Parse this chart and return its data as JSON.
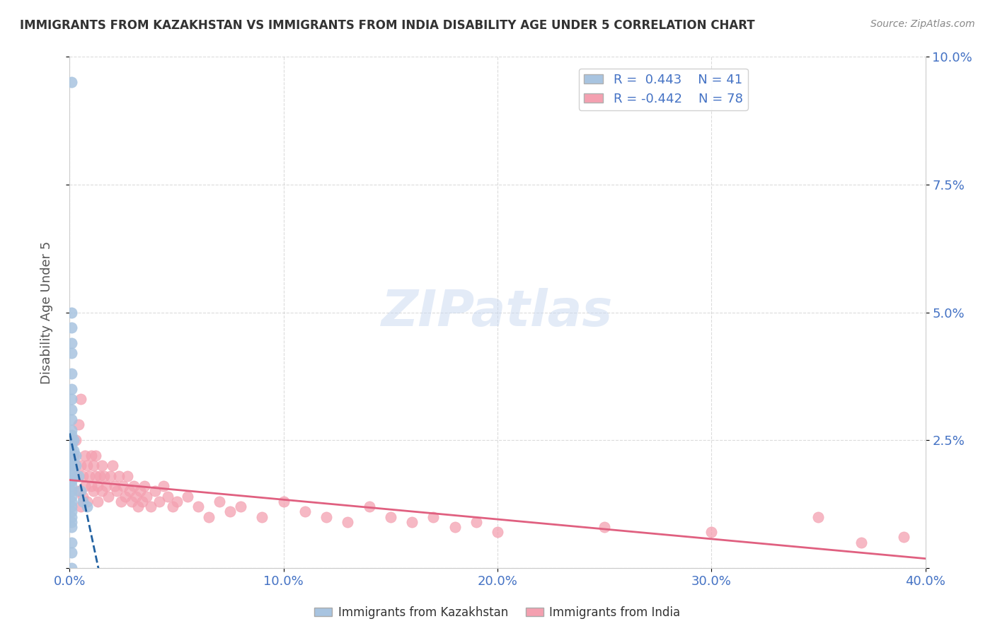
{
  "title": "IMMIGRANTS FROM KAZAKHSTAN VS IMMIGRANTS FROM INDIA DISABILITY AGE UNDER 5 CORRELATION CHART",
  "source": "Source: ZipAtlas.com",
  "ylabel": "Disability Age Under 5",
  "xlabel_bottom_left": "0.0%",
  "xlabel_bottom_right": "40.0%",
  "watermark": "ZIPatlas",
  "xlim": [
    0.0,
    0.4
  ],
  "ylim": [
    0.0,
    0.1
  ],
  "yticks": [
    0.0,
    0.025,
    0.05,
    0.075,
    0.1
  ],
  "ytick_labels": [
    "",
    "2.5%",
    "5.0%",
    "7.5%",
    "10.0%"
  ],
  "xticks": [
    0.0,
    0.1,
    0.2,
    0.3,
    0.4
  ],
  "xtick_labels": [
    "0.0%",
    "10.0%",
    "20.0%",
    "30.0%",
    "40.0%"
  ],
  "legend_r_kaz": "R =  0.443",
  "legend_n_kaz": "N = 41",
  "legend_r_ind": "R = -0.442",
  "legend_n_ind": "N = 78",
  "kaz_color": "#a8c4e0",
  "kaz_line_color": "#2060a0",
  "ind_color": "#f4a0b0",
  "ind_line_color": "#e06080",
  "title_color": "#333333",
  "axis_color": "#4472c4",
  "grid_color": "#cccccc",
  "background_color": "#ffffff",
  "kaz_x": [
    0.001,
    0.001,
    0.001,
    0.001,
    0.001,
    0.001,
    0.001,
    0.001,
    0.001,
    0.001,
    0.001,
    0.001,
    0.001,
    0.001,
    0.001,
    0.001,
    0.001,
    0.001,
    0.001,
    0.001,
    0.001,
    0.001,
    0.001,
    0.001,
    0.001,
    0.001,
    0.001,
    0.001,
    0.002,
    0.002,
    0.003,
    0.003,
    0.004,
    0.005,
    0.006,
    0.008,
    0.001,
    0.001,
    0.001,
    0.001,
    0.001
  ],
  "kaz_y": [
    0.095,
    0.05,
    0.047,
    0.044,
    0.042,
    0.038,
    0.035,
    0.033,
    0.031,
    0.029,
    0.027,
    0.026,
    0.025,
    0.024,
    0.023,
    0.022,
    0.021,
    0.02,
    0.019,
    0.018,
    0.017,
    0.016,
    0.015,
    0.014,
    0.013,
    0.012,
    0.011,
    0.01,
    0.025,
    0.023,
    0.022,
    0.02,
    0.018,
    0.015,
    0.013,
    0.012,
    0.009,
    0.008,
    0.005,
    0.003,
    0.0
  ],
  "ind_x": [
    0.001,
    0.002,
    0.003,
    0.003,
    0.004,
    0.004,
    0.005,
    0.005,
    0.006,
    0.006,
    0.007,
    0.007,
    0.008,
    0.008,
    0.009,
    0.01,
    0.01,
    0.011,
    0.011,
    0.012,
    0.012,
    0.013,
    0.013,
    0.014,
    0.015,
    0.015,
    0.016,
    0.017,
    0.018,
    0.019,
    0.02,
    0.021,
    0.022,
    0.023,
    0.024,
    0.025,
    0.026,
    0.027,
    0.028,
    0.029,
    0.03,
    0.031,
    0.032,
    0.033,
    0.034,
    0.035,
    0.036,
    0.038,
    0.04,
    0.042,
    0.044,
    0.046,
    0.048,
    0.05,
    0.055,
    0.06,
    0.065,
    0.07,
    0.075,
    0.08,
    0.09,
    0.1,
    0.11,
    0.12,
    0.13,
    0.14,
    0.15,
    0.16,
    0.17,
    0.18,
    0.19,
    0.2,
    0.25,
    0.3,
    0.35,
    0.37,
    0.39,
    0.005
  ],
  "ind_y": [
    0.02,
    0.022,
    0.025,
    0.018,
    0.028,
    0.015,
    0.02,
    0.012,
    0.018,
    0.014,
    0.022,
    0.016,
    0.02,
    0.013,
    0.018,
    0.022,
    0.016,
    0.02,
    0.015,
    0.018,
    0.022,
    0.016,
    0.013,
    0.018,
    0.02,
    0.015,
    0.018,
    0.016,
    0.014,
    0.018,
    0.02,
    0.016,
    0.015,
    0.018,
    0.013,
    0.016,
    0.014,
    0.018,
    0.015,
    0.013,
    0.016,
    0.014,
    0.012,
    0.015,
    0.013,
    0.016,
    0.014,
    0.012,
    0.015,
    0.013,
    0.016,
    0.014,
    0.012,
    0.013,
    0.014,
    0.012,
    0.01,
    0.013,
    0.011,
    0.012,
    0.01,
    0.013,
    0.011,
    0.01,
    0.009,
    0.012,
    0.01,
    0.009,
    0.01,
    0.008,
    0.009,
    0.007,
    0.008,
    0.007,
    0.01,
    0.005,
    0.006,
    0.033
  ]
}
